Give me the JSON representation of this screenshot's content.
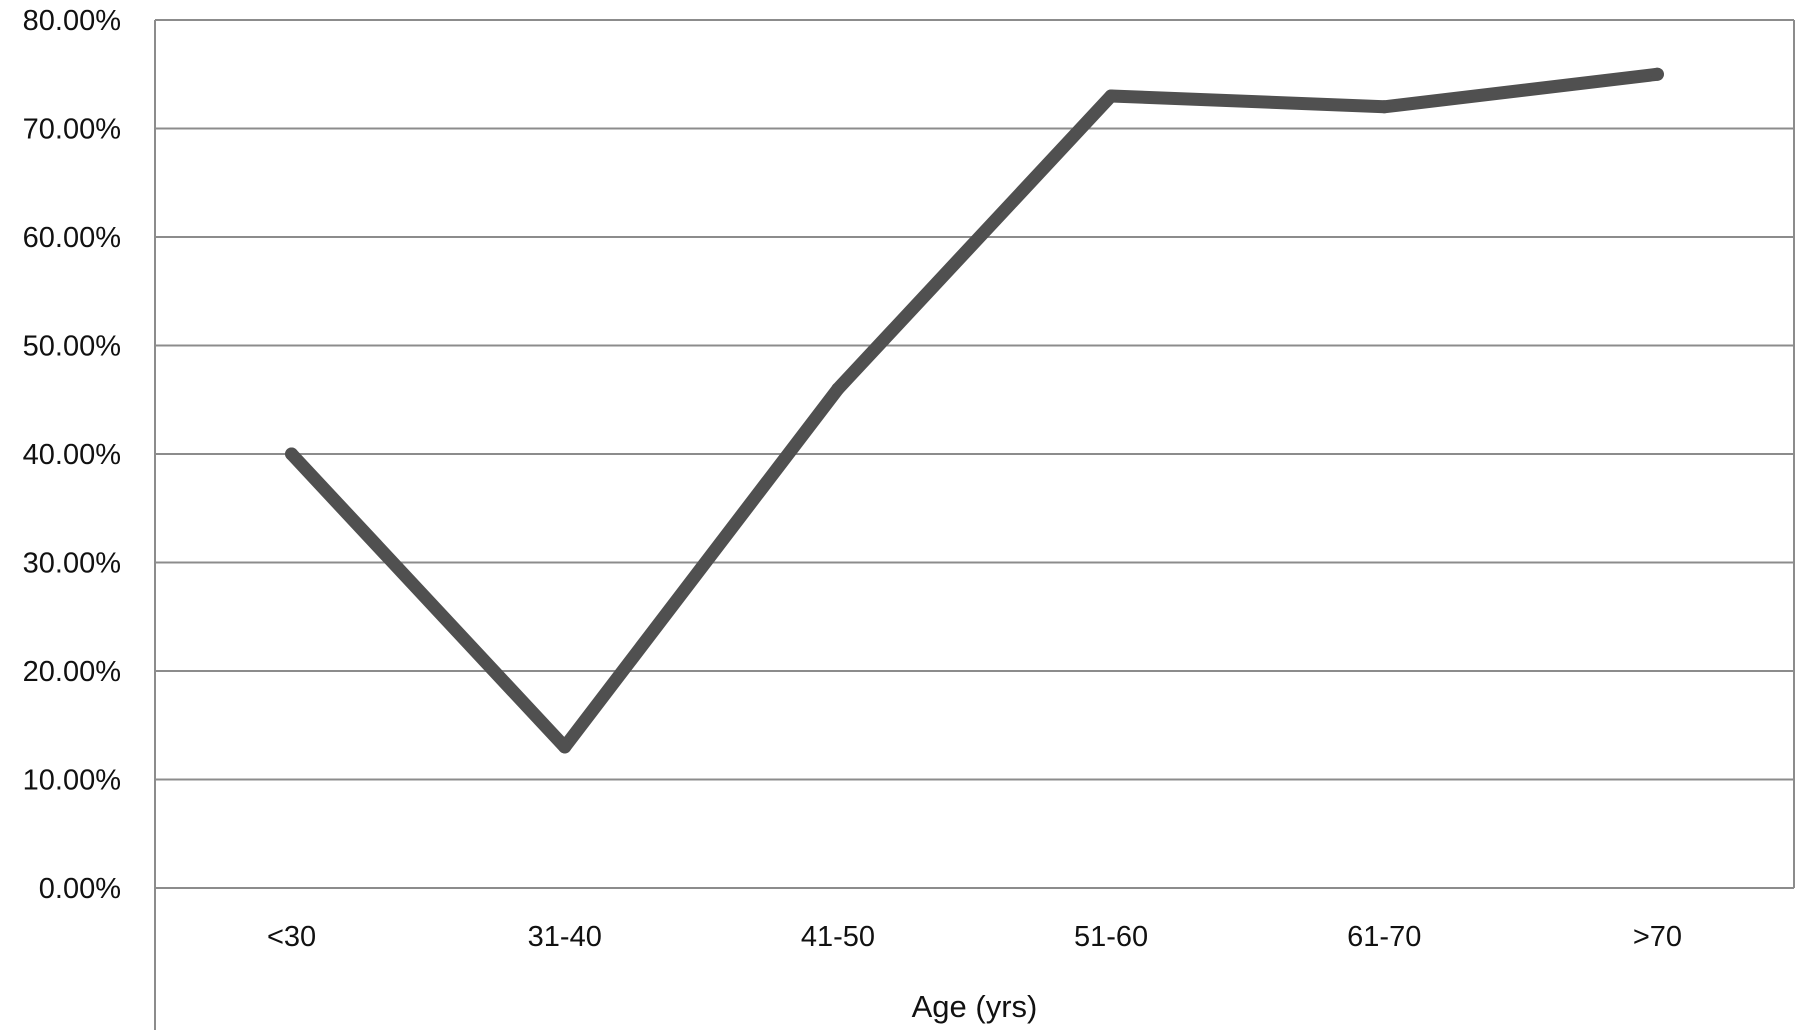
{
  "chart_data": {
    "type": "line",
    "title": "",
    "xlabel": "Age (yrs)",
    "ylabel": "",
    "categories": [
      "<30",
      "31-40",
      "41-50",
      "51-60",
      "61-70",
      ">70"
    ],
    "series": [
      {
        "values": [
          40.0,
          13.0,
          46.0,
          73.0,
          72.0,
          75.0
        ]
      }
    ],
    "ylim": [
      0,
      80
    ],
    "yticks": [
      "0.00%",
      "10.00%",
      "20.00%",
      "30.00%",
      "40.00%",
      "50.00%",
      "60.00%",
      "70.00%",
      "80.00%"
    ],
    "grid": true,
    "legend": "none",
    "colors": {
      "line": "#505050",
      "grid": "#8c8c8c",
      "axis": "#8c8c8c"
    }
  }
}
